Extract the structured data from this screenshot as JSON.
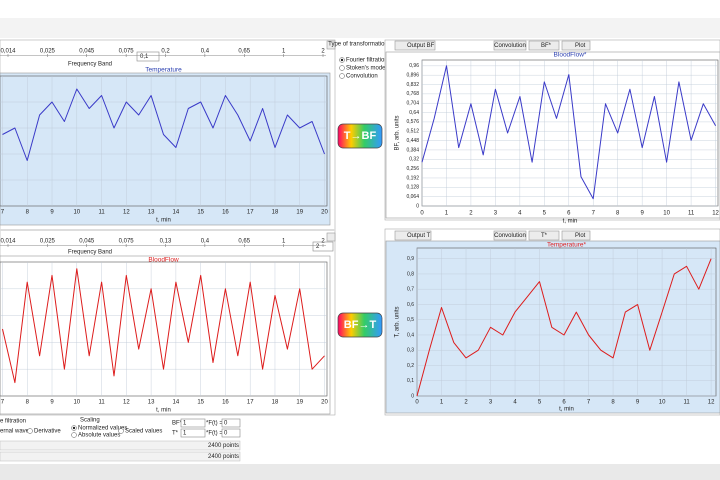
{
  "left_panel": {
    "band_top": {
      "labels": [
        "0,014",
        "0,025",
        "0,045",
        "0,075",
        "0,2",
        "0,4",
        "0,65",
        "1",
        "2"
      ],
      "caption": "Frequency Band",
      "input": "0,1"
    },
    "band_bottom": {
      "labels": [
        "0,014",
        "0,025",
        "0,045",
        "0,075",
        "0,13",
        "0,4",
        "0,65",
        "1",
        "2"
      ],
      "caption": "Frequency Band",
      "input": "2"
    }
  },
  "middle": {
    "heading": "Type of transformation",
    "options": [
      "Fourier filtration",
      "Stoken's model",
      "Convolution"
    ],
    "forward": "T→BF",
    "backward": "BF→T"
  },
  "right_panel": {
    "top_toolbar": [
      "Output BF",
      "Convolution",
      "BF*",
      "Plot"
    ],
    "bottom_toolbar": [
      "Output T",
      "Convolution",
      "T*",
      "Plot"
    ]
  },
  "bottom_controls": {
    "filtration": "e filtration",
    "wave": "ernal wave",
    "derivative": "Derivative",
    "scaling": "Scaling",
    "normalized": "Normalized values",
    "absolute": "Absolute values",
    "scaled": "Scaled values",
    "bf_label": "BF*",
    "t_label": "T*",
    "bf_value": "1",
    "t_value": "1",
    "bf_f": "*F(t) =",
    "t_f": "*F(t) =",
    "bf_f_value": "0",
    "t_f_value": "0",
    "points_1": "2400 points",
    "points_2": "2400 points"
  },
  "chart_data": [
    {
      "type": "line",
      "title": "Temperature",
      "xlabel": "t, min",
      "grid": true,
      "xlim": [
        6.9,
        20.1
      ],
      "ylim": [
        0,
        1
      ],
      "xticks": [
        7,
        8,
        9,
        10,
        11,
        12,
        13,
        14,
        15,
        16,
        17,
        18,
        19,
        20
      ],
      "x": [
        7,
        7.5,
        8,
        8.5,
        9,
        9.5,
        10,
        10.5,
        11,
        11.5,
        12,
        12.5,
        13,
        13.5,
        14,
        14.5,
        15,
        15.5,
        16,
        16.5,
        17,
        17.5,
        18,
        18.5,
        19,
        19.5,
        20
      ],
      "series": [
        {
          "color": "#3a3ac8",
          "values": [
            0.55,
            0.6,
            0.35,
            0.7,
            0.8,
            0.65,
            0.9,
            0.75,
            0.85,
            0.6,
            0.8,
            0.7,
            0.85,
            0.55,
            0.45,
            0.75,
            0.8,
            0.6,
            0.85,
            0.7,
            0.5,
            0.75,
            0.45,
            0.7,
            0.6,
            0.65,
            0.4
          ]
        }
      ]
    },
    {
      "type": "line",
      "title": "BloodFlow",
      "xlabel": "t, min",
      "grid": true,
      "xlim": [
        6.9,
        20.1
      ],
      "ylim": [
        0,
        1
      ],
      "xticks": [
        7,
        8,
        9,
        10,
        11,
        12,
        13,
        14,
        15,
        16,
        17,
        18,
        19,
        20
      ],
      "x": [
        7,
        7.5,
        8,
        8.5,
        9,
        9.5,
        10,
        10.5,
        11,
        11.5,
        12,
        12.5,
        13,
        13.5,
        14,
        14.5,
        15,
        15.5,
        16,
        16.5,
        17,
        17.5,
        18,
        18.5,
        19,
        19.5,
        20
      ],
      "series": [
        {
          "color": "#dd1c1c",
          "values": [
            0.5,
            0.1,
            0.85,
            0.3,
            0.9,
            0.2,
            0.95,
            0.3,
            0.85,
            0.15,
            0.9,
            0.35,
            0.8,
            0.2,
            0.85,
            0.4,
            0.9,
            0.25,
            0.8,
            0.3,
            0.85,
            0.2,
            0.75,
            0.35,
            0.8,
            0.2,
            0.3
          ]
        }
      ]
    },
    {
      "type": "line",
      "title": "BloodFlow*",
      "xlabel": "t, min",
      "ylabel": "BF, arb. units",
      "grid": true,
      "xlim": [
        0,
        12.1
      ],
      "ylim": [
        0,
        1
      ],
      "xticks": [
        0,
        1,
        2,
        3,
        4,
        5,
        6,
        7,
        8,
        9,
        10,
        11,
        12
      ],
      "yticks": [
        0,
        {
          "value": 0.064,
          "label": "0,064"
        },
        {
          "value": 0.128,
          "label": "0,128"
        },
        {
          "value": 0.192,
          "label": "0,192"
        },
        {
          "value": 0.256,
          "label": "0,256"
        },
        {
          "value": 0.32,
          "label": "0,32"
        },
        {
          "value": 0.384,
          "label": "0,384"
        },
        {
          "value": 0.448,
          "label": "0,448"
        },
        {
          "value": 0.512,
          "label": "0,512"
        },
        {
          "value": 0.576,
          "label": "0,576"
        },
        {
          "value": 0.64,
          "label": "0,64"
        },
        {
          "value": 0.704,
          "label": "0,704"
        },
        {
          "value": 0.768,
          "label": "0,768"
        },
        {
          "value": 0.832,
          "label": "0,832"
        },
        {
          "value": 0.896,
          "label": "0,896"
        },
        {
          "value": 0.96,
          "label": "0,96"
        }
      ],
      "x": [
        0,
        0.5,
        1,
        1.5,
        2,
        2.5,
        3,
        3.5,
        4,
        4.5,
        5,
        5.5,
        6,
        6.5,
        7,
        7.5,
        8,
        8.5,
        9,
        9.5,
        10,
        10.5,
        11,
        11.5,
        12
      ],
      "series": [
        {
          "color": "#3a3ac8",
          "values": [
            0.3,
            0.6,
            0.96,
            0.4,
            0.7,
            0.35,
            0.8,
            0.5,
            0.75,
            0.3,
            0.85,
            0.6,
            0.9,
            0.2,
            0.05,
            0.7,
            0.5,
            0.8,
            0.4,
            0.75,
            0.3,
            0.85,
            0.45,
            0.7,
            0.55
          ]
        }
      ]
    },
    {
      "type": "line",
      "title": "Temperature*",
      "xlabel": "t, min",
      "ylabel": "T, arb. units",
      "grid": true,
      "xlim": [
        0,
        12.2
      ],
      "ylim": [
        0,
        0.97
      ],
      "xticks": [
        0,
        1,
        2,
        3,
        4,
        5,
        6,
        7,
        8,
        9,
        10,
        11,
        12
      ],
      "yticks": [
        0,
        {
          "value": 0.1,
          "label": "0,1"
        },
        {
          "value": 0.2,
          "label": "0,2"
        },
        {
          "value": 0.3,
          "label": "0,3"
        },
        {
          "value": 0.4,
          "label": "0,4"
        },
        {
          "value": 0.5,
          "label": "0,5"
        },
        {
          "value": 0.6,
          "label": "0,6"
        },
        {
          "value": 0.7,
          "label": "0,7"
        },
        {
          "value": 0.8,
          "label": "0,8"
        },
        {
          "value": 0.9,
          "label": "0,9"
        }
      ],
      "x": [
        0,
        0.5,
        1,
        1.5,
        2,
        2.5,
        3,
        3.5,
        4,
        4.5,
        5,
        5.5,
        6,
        6.5,
        7,
        7.5,
        8,
        8.5,
        9,
        9.5,
        10,
        10.5,
        11,
        11.5,
        12
      ],
      "series": [
        {
          "color": "#dd1c1c",
          "values": [
            0,
            0.3,
            0.58,
            0.35,
            0.25,
            0.3,
            0.45,
            0.4,
            0.55,
            0.65,
            0.75,
            0.45,
            0.4,
            0.55,
            0.4,
            0.3,
            0.25,
            0.55,
            0.6,
            0.3,
            0.55,
            0.8,
            0.85,
            0.7,
            0.9
          ]
        }
      ]
    }
  ]
}
